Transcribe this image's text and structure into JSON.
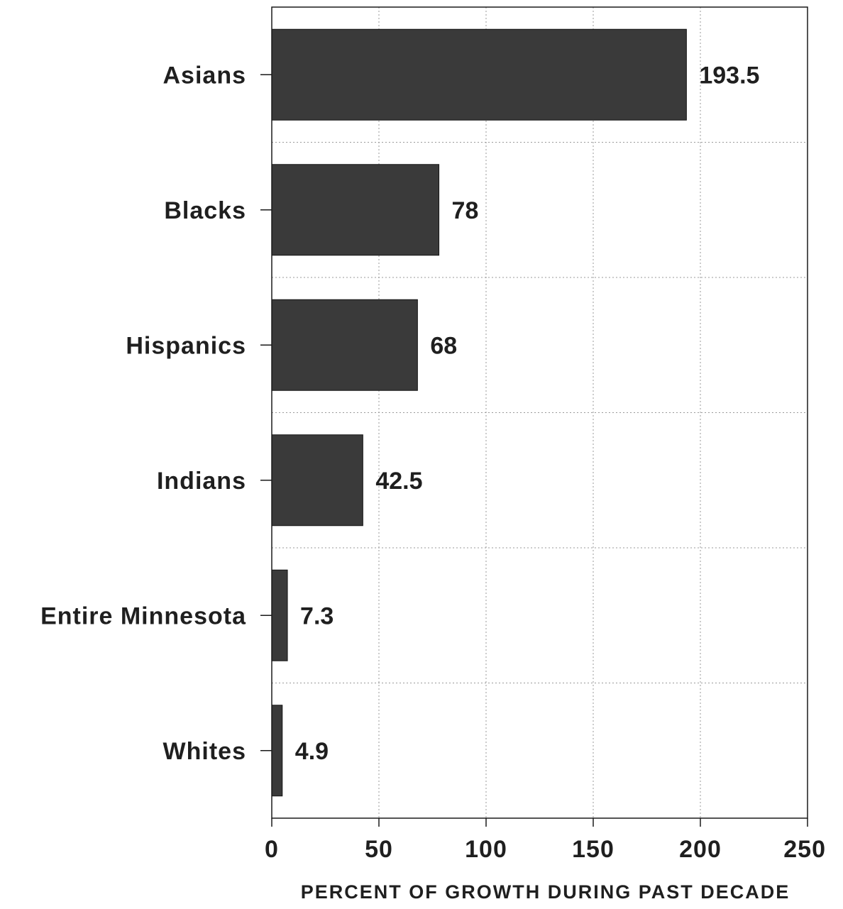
{
  "chart_data": {
    "type": "bar",
    "orientation": "horizontal",
    "categories": [
      "Asians",
      "Blacks",
      "Hispanics",
      "Indians",
      "Entire Minnesota",
      "Whites"
    ],
    "values": [
      193.5,
      78,
      68,
      42.5,
      7.3,
      4.9
    ],
    "value_labels": [
      "193.5",
      "78",
      "68",
      "42.5",
      "7.3",
      "4.9"
    ],
    "xlabel": "PERCENT OF GROWTH DURING PAST DECADE",
    "ylabel": "",
    "title": "",
    "xlim": [
      0,
      250
    ],
    "xticks": [
      0,
      50,
      100,
      150,
      200,
      250
    ],
    "xtick_labels": [
      "0",
      "50",
      "100",
      "150",
      "200",
      "250"
    ],
    "grid": true,
    "legend": "none",
    "bar_color": "#3a3a3a"
  }
}
